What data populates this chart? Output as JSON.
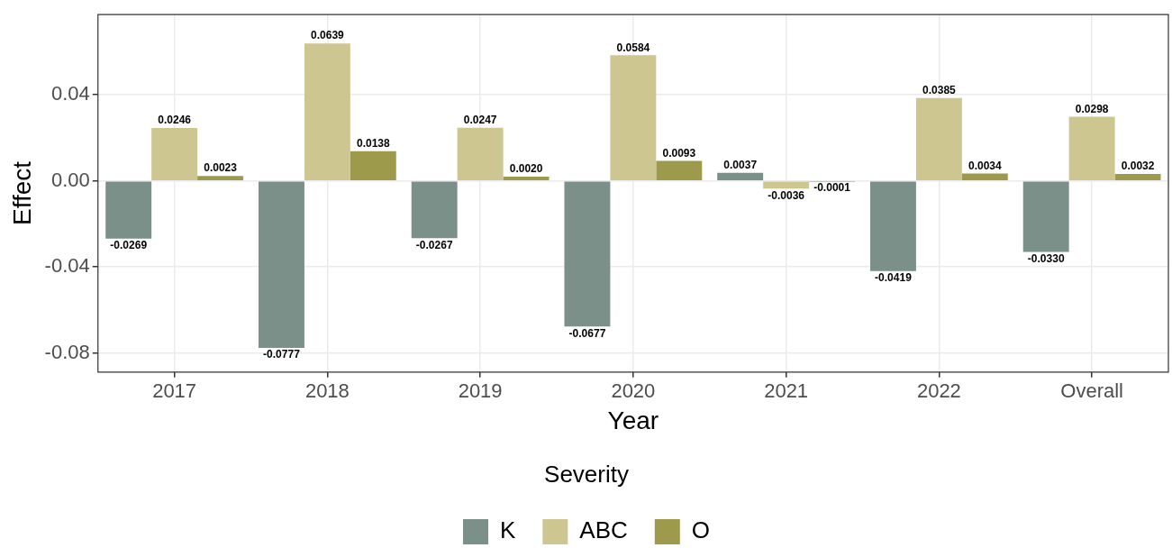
{
  "chart_data": {
    "type": "bar",
    "xlabel": "Year",
    "ylabel": "Effect",
    "legend_title": "Severity",
    "legend": "bottom",
    "grid": true,
    "categories": [
      "2017",
      "2018",
      "2019",
      "2020",
      "2021",
      "2022",
      "Overall"
    ],
    "ylim": [
      -0.0889,
      0.0773
    ],
    "yticks": [
      -0.08,
      -0.04,
      {
        "value": 0,
        "label": "0.00"
      },
      0.04
    ],
    "series": [
      {
        "name": "K",
        "color": "#7a9088",
        "values": [
          -0.0269,
          -0.0777,
          -0.0267,
          -0.0677,
          0.0037,
          -0.0419,
          -0.033
        ],
        "value_labels": [
          "-0.0269",
          "-0.0777",
          "-0.0267",
          "-0.0677",
          "0.0037",
          "-0.0419",
          "-0.0330"
        ]
      },
      {
        "name": "ABC",
        "color": "#cdc690",
        "values": [
          0.0246,
          0.0639,
          0.0247,
          0.0584,
          -0.0036,
          0.0385,
          0.0298
        ],
        "value_labels": [
          "0.0246",
          "0.0639",
          "0.0247",
          "0.0584",
          "-0.0036",
          "0.0385",
          "0.0298"
        ]
      },
      {
        "name": "O",
        "color": "#9e9a4c",
        "values": [
          0.0023,
          0.0138,
          0.002,
          0.0093,
          -0.0001,
          0.0034,
          0.0032
        ],
        "value_labels": [
          "0.0023",
          "0.0138",
          "0.0020",
          "0.0093",
          "-0.0001",
          "0.0034",
          "0.0032"
        ]
      }
    ]
  }
}
